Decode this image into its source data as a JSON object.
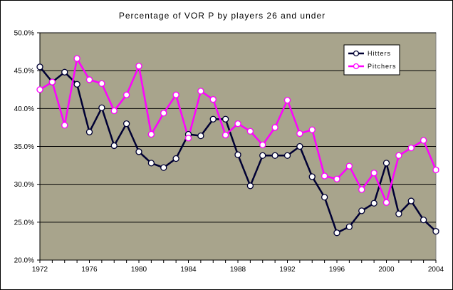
{
  "chart_data": {
    "type": "line",
    "title": "Percentage of VOR P by players 26 and under",
    "xlabel": "",
    "ylabel": "",
    "x": [
      1972,
      1973,
      1974,
      1975,
      1976,
      1977,
      1978,
      1979,
      1980,
      1981,
      1982,
      1983,
      1984,
      1985,
      1986,
      1987,
      1988,
      1989,
      1990,
      1991,
      1992,
      1993,
      1994,
      1995,
      1996,
      1997,
      1998,
      1999,
      2000,
      2001,
      2002,
      2003,
      2004
    ],
    "xlim": [
      1972,
      2004
    ],
    "xticks": [
      1972,
      1976,
      1980,
      1984,
      1988,
      1992,
      1996,
      2000,
      2004
    ],
    "xtick_labels": [
      "1972",
      "1976",
      "1980",
      "1984",
      "1988",
      "1992",
      "1996",
      "2000",
      "2004"
    ],
    "ylim": [
      20,
      50
    ],
    "yticks": [
      20,
      25,
      30,
      35,
      40,
      45,
      50
    ],
    "ytick_labels": [
      "20.0%",
      "25.0%",
      "30.0%",
      "35.0%",
      "40.0%",
      "45.0%",
      "50.0%"
    ],
    "grid": "horizontal",
    "legend_position": "top-right",
    "series": [
      {
        "name": "Hitters",
        "color": "#000033",
        "values": [
          45.5,
          43.5,
          44.8,
          43.2,
          36.9,
          40.1,
          35.1,
          38.0,
          34.3,
          32.8,
          32.2,
          33.4,
          36.6,
          36.4,
          38.6,
          38.6,
          33.9,
          29.8,
          33.8,
          33.8,
          33.8,
          35.0,
          31.0,
          28.3,
          23.6,
          24.4,
          26.5,
          27.5,
          32.8,
          26.1,
          27.8,
          25.3,
          23.8
        ]
      },
      {
        "name": "Pitchers",
        "color": "#ff00ff",
        "values": [
          42.5,
          43.5,
          37.8,
          46.6,
          43.8,
          43.3,
          39.7,
          41.8,
          45.6,
          36.6,
          39.4,
          41.8,
          36.1,
          42.3,
          41.2,
          36.5,
          38.0,
          37.0,
          35.2,
          37.5,
          41.1,
          36.7,
          37.2,
          31.1,
          30.7,
          32.4,
          29.3,
          31.5,
          27.6,
          33.8,
          34.8,
          35.8,
          31.9
        ]
      }
    ]
  },
  "colors": {
    "plot_background": "#a8a48c",
    "marker_fill": "#ffffff",
    "gridline": "#000000"
  }
}
